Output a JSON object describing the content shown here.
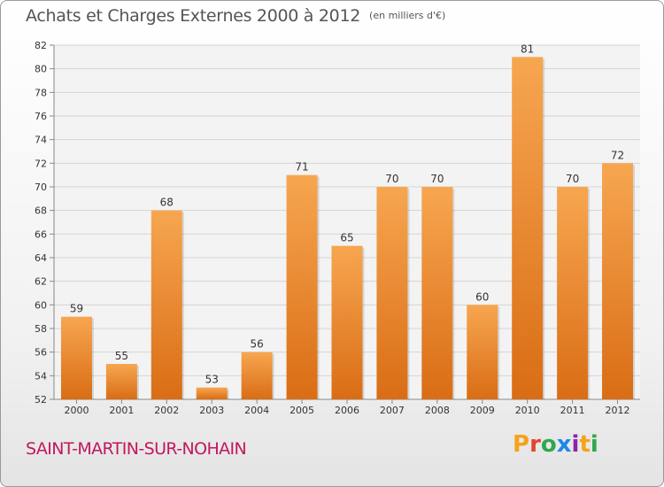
{
  "page": {
    "title": "Achats et Charges Externes 2000 à 2012",
    "subtitle": "(en milliers d'€)",
    "place": "SAINT-MARTIN-SUR-NOHAIN",
    "logo": "Proxiti"
  },
  "colors": {
    "bar_top": "#f7a650",
    "bar_bottom": "#d96d15",
    "title": "#555555",
    "place": "#c2185b",
    "logo": [
      "#f5a31a",
      "#e5432d",
      "#2fa84f",
      "#1e88e5",
      "#8e24aa",
      "#f5a31a",
      "#2fa84f"
    ]
  },
  "chart_data": {
    "type": "bar",
    "title": "Achats et Charges Externes 2000 à 2012",
    "subtitle": "(en milliers d'€)",
    "categories": [
      "2000",
      "2001",
      "2002",
      "2003",
      "2004",
      "2005",
      "2006",
      "2007",
      "2008",
      "2009",
      "2010",
      "2011",
      "2012"
    ],
    "values": [
      59,
      55,
      68,
      53,
      56,
      71,
      65,
      70,
      70,
      60,
      81,
      70,
      72
    ],
    "ylim": [
      52,
      82
    ],
    "yticks": [
      52,
      54,
      56,
      58,
      60,
      62,
      64,
      66,
      68,
      70,
      72,
      74,
      76,
      78,
      80,
      82
    ],
    "grid": true,
    "data_labels": true
  }
}
